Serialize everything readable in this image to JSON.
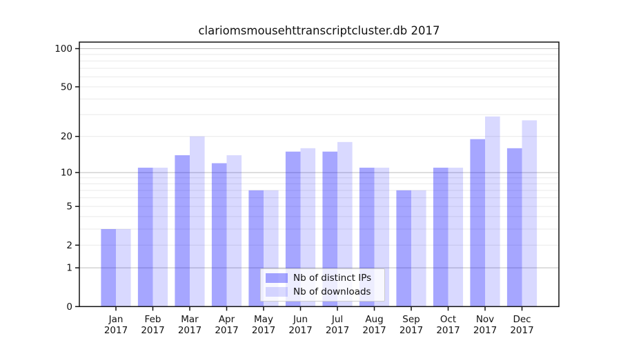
{
  "chart_data": {
    "type": "bar",
    "title": "clariomsmousehttranscriptcluster.db 2017",
    "year_label": "2017",
    "categories": [
      "Jan",
      "Feb",
      "Mar",
      "Apr",
      "May",
      "Jun",
      "Jul",
      "Aug",
      "Sep",
      "Oct",
      "Nov",
      "Dec"
    ],
    "series": [
      {
        "name": "Nb of distinct IPs",
        "color": "rgba(0,0,255,0.35)",
        "values": [
          3,
          11,
          14,
          12,
          7,
          15,
          15,
          11,
          7,
          11,
          19,
          16
        ]
      },
      {
        "name": "Nb of downloads",
        "color": "rgba(0,0,255,0.15)",
        "values": [
          3,
          11,
          20,
          14,
          7,
          16,
          18,
          11,
          7,
          11,
          29,
          27
        ]
      }
    ],
    "xlabel": "",
    "ylabel": "",
    "yscale": "log1p",
    "yticks": [
      0,
      1,
      2,
      5,
      10,
      20,
      50,
      100
    ],
    "ylim": [
      0,
      113
    ],
    "grid": true,
    "grid_major_values": [
      1,
      10,
      100
    ],
    "grid_minor_values": [
      2,
      3,
      4,
      5,
      6,
      7,
      8,
      9,
      20,
      30,
      40,
      50,
      60,
      70,
      80,
      90
    ],
    "legend_position": "lower center",
    "style": {
      "grid_major_color": "#bdbdbd",
      "grid_minor_color": "#e9e9e9",
      "spine_color": "#111111",
      "text_color": "#111111",
      "background": "#ffffff"
    }
  }
}
